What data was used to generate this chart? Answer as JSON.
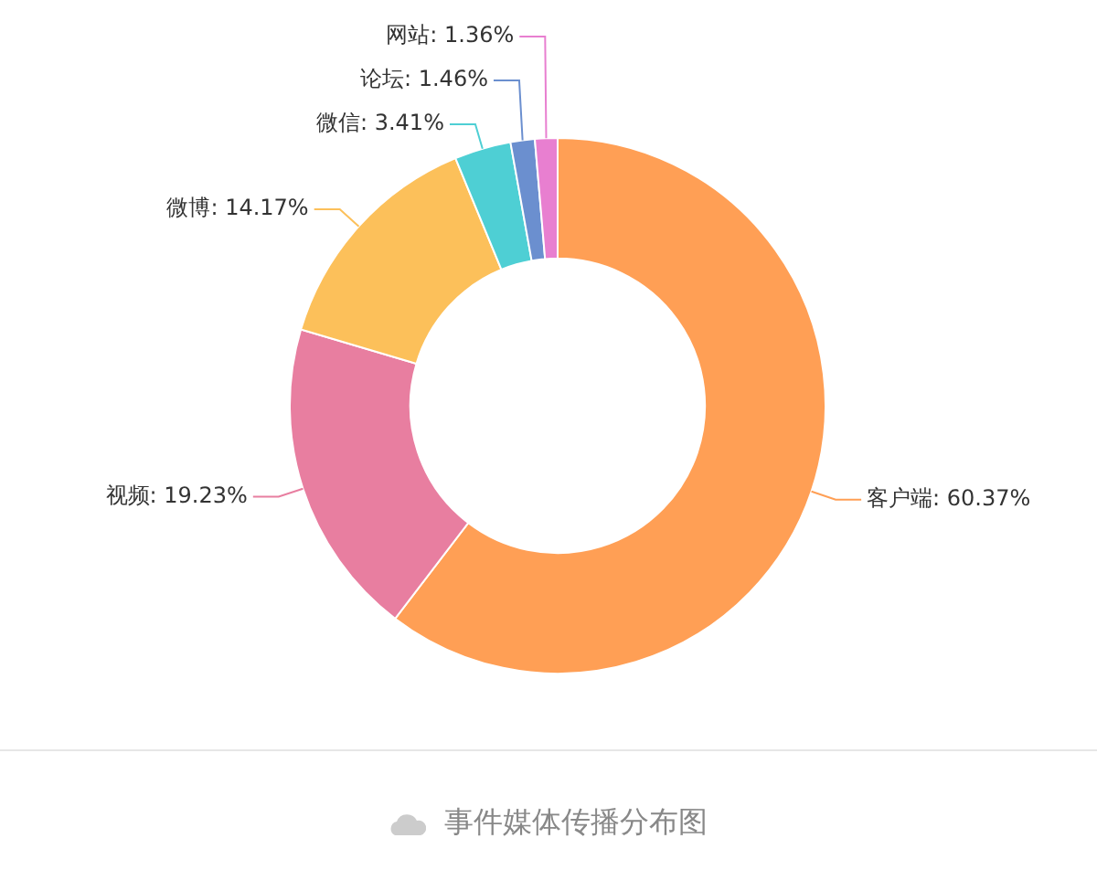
{
  "chart_data": {
    "type": "donut",
    "title": "事件媒体传播分布图",
    "categories": [
      "客户端",
      "视频",
      "微博",
      "微信",
      "论坛",
      "网站"
    ],
    "values": [
      60.37,
      19.23,
      14.17,
      3.41,
      1.46,
      1.36
    ],
    "colors": [
      "#ff9f55",
      "#e87ea0",
      "#fcc05a",
      "#4ecfd4",
      "#6b8fcf",
      "#e87fd0"
    ],
    "value_labels": [
      "60.37%",
      "19.23%",
      "14.17%",
      "3.41%",
      "1.46%",
      "1.36%"
    ]
  }
}
